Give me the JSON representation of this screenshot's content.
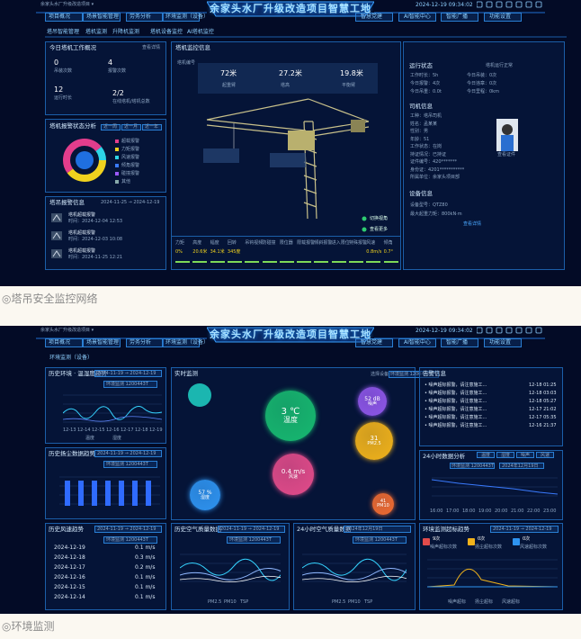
{
  "captions": [
    "◎塔吊安全监控网络",
    "◎环境监测"
  ],
  "figures": [
    {
      "header": {
        "project": "余家头水厂升级改造项目 ▾",
        "title": "余家头水厂升级改造项目智慧工地",
        "datetime": "2024-12-19 09:34:02"
      },
      "nav_left": [
        "项目概况",
        "场景智能管理",
        "劳务分析",
        "环境监测（设备）"
      ],
      "nav_right": [
        "智慧党建",
        "AI智能中心",
        "智能广播",
        "功能设置"
      ],
      "tabs": [
        "塔吊智能管理",
        "塔机监测",
        "升降机监测",
        "塔机设备监控",
        "AI塔机监控"
      ],
      "work_panel": {
        "title": "今日塔机工作概况",
        "more": "查看详情",
        "items": [
          {
            "value": "0",
            "label": "吊装次数"
          },
          {
            "value": "4",
            "label": "报警次数"
          },
          {
            "value": "12",
            "label": "运行时长"
          },
          {
            "value": "2/2",
            "label": "在线塔机/塔机总数"
          }
        ]
      },
      "alarm_panel": {
        "title": "塔机报警状态分析",
        "tabs": [
          "近一周",
          "近一月",
          "近一年"
        ],
        "legend": [
          "超载报警",
          "力矩报警",
          "风速报警",
          "倾角报警",
          "碰撞报警",
          "其他"
        ]
      },
      "record_panel": {
        "title": "塔吊报警信息",
        "range": "2024-11-25 → 2024-12-19",
        "items": [
          {
            "name": "塔机超载报警",
            "time": "时间：2024-12-04 12:53"
          },
          {
            "name": "塔机超载报警",
            "time": "时间：2024-12-03 10:08"
          },
          {
            "name": "塔机超载报警",
            "time": "时间：2024-11-25 12:21"
          }
        ]
      },
      "monitor": {
        "title": "塔机监控信息",
        "device": "塔机编号",
        "top_stats": [
          {
            "value": "72米",
            "label": "起重臂"
          },
          {
            "value": "27.2米",
            "label": "塔高"
          },
          {
            "value": "19.8米",
            "label": "平衡臂"
          }
        ],
        "bottom": [
          {
            "label": "力矩",
            "value": "0%"
          },
          {
            "label": "高度",
            "value": "20.6米"
          },
          {
            "label": "幅度",
            "value": "34.1米"
          },
          {
            "label": "回转",
            "value": "345度"
          },
          {
            "label": "吊钩视频"
          },
          {
            "label": "防碰撞"
          },
          {
            "label": "限位器"
          },
          {
            "label": "限载报警"
          },
          {
            "label": "倾斜报警"
          },
          {
            "label": "进入限位"
          },
          {
            "label": "特殊报警"
          },
          {
            "label": "风速",
            "value": "0.8m/s"
          },
          {
            "label": "倾角",
            "value": "0.7°"
          }
        ],
        "buttons": [
          "切换视角",
          "查看更多"
        ]
      },
      "right": {
        "status_title": "运行状态",
        "status_tag": "塔机运行正常",
        "status": [
          "工作时长：5h",
          "今日吊装：0次",
          "今日报警：4次",
          "今日违章：0次",
          "今日吊重：0.0t",
          "今日里程：0km"
        ],
        "driver_title": "司机信息",
        "driver": [
          "工种：塔吊司机",
          "姓名：孟某某",
          "性别：男",
          "年龄：51",
          "工作状态：在岗",
          "持证情况：已持证",
          "证件编号：420*******",
          "身份证：4201***********",
          "所属单位：余家头项目部"
        ],
        "photo_label": "查看证件",
        "device_title": "设备信息",
        "device": [
          "设备型号：QTZ80",
          "最大起重力矩：800kN·m"
        ],
        "device_more": "查看详情"
      }
    },
    {
      "header": {
        "project": "余家头水厂升级改造项目 ▾",
        "title": "余家头水厂升级改造项目智慧工地",
        "datetime": "2024-12-19 09:34:02"
      },
      "nav_left": [
        "项目概况",
        "场景智能管理",
        "劳务分析",
        "环境监测（设备）"
      ],
      "nav_right": [
        "智慧党建",
        "AI智能中心",
        "智能广播",
        "功能设置"
      ],
      "subtitle": "环境监测（设备）",
      "temp_panel": {
        "title": "历史环境 · 温湿度趋势",
        "range": "2024-11-19 → 2024-12-19",
        "device": "环境监测 1200443T",
        "dates": [
          "12-13",
          "12-14",
          "12-15",
          "12-16",
          "12-17",
          "12-18",
          "12-19"
        ],
        "legend": [
          "温度",
          "湿度"
        ]
      },
      "dust_panel": {
        "title": "历史扬尘数据趋势",
        "range": "2024-11-19 → 2024-12-19",
        "device": "环境监测 1200443T"
      },
      "wind_panel": {
        "title": "历史风速趋势",
        "range": "2024-11-19 → 2024-12-19",
        "device": "环境监测 1200443T",
        "rows": [
          [
            "2024-12-19",
            "0.1 m/s"
          ],
          [
            "2024-12-18",
            "0.3 m/s"
          ],
          [
            "2024-12-17",
            "0.2 m/s"
          ],
          [
            "2024-12-16",
            "0.1 m/s"
          ],
          [
            "2024-12-15",
            "0.1 m/s"
          ],
          [
            "2024-12-14",
            "0.1 m/s"
          ]
        ]
      },
      "realtime": {
        "title": "实时监测",
        "device_label": "选择设备",
        "device": "环境监测 1200443T",
        "bubbles": [
          {
            "value": "3 ℃",
            "label": "温度"
          },
          {
            "value": "52 dB",
            "label": "噪声"
          },
          {
            "value": "31",
            "label": "PM2.5"
          },
          {
            "value": "0.4 m/s",
            "label": "风速"
          },
          {
            "value": "57 %",
            "label": "湿度"
          },
          {
            "value": "41",
            "label": "PM10"
          }
        ]
      },
      "alerts": {
        "title": "告警信息",
        "items": [
          [
            "• 噪声超标报警，请注意施工...",
            "12-18 01:25"
          ],
          [
            "• 噪声超标报警，请注意施工...",
            "12-18 03:03"
          ],
          [
            "• 噪声超标报警，请注意施工...",
            "12-18 05:27"
          ],
          [
            "• 噪声超标报警，请注意施工...",
            "12-17 21:02"
          ],
          [
            "• 噪声超标报警，请注意施工...",
            "12-17 05:35"
          ],
          [
            "• 噪声超标报警，请注意施工...",
            "12-16 21:37"
          ]
        ]
      },
      "analysis": {
        "title": "24小时数据分析",
        "tabs": [
          "温度",
          "湿度",
          "噪声",
          "风速"
        ],
        "device": "环境监测 1200443T",
        "date": "2024年12月19日",
        "hours": [
          "16:00",
          "17:00",
          "18:00",
          "19:00",
          "20:00",
          "21:00",
          "22:00",
          "23:00"
        ]
      },
      "air_panel": {
        "title": "历史空气质量数据",
        "range": "2024-11-19 → 2024-12-19",
        "device": "环境监测 1200443T",
        "legend": [
          "PM2.5",
          "PM10",
          "TSP"
        ]
      },
      "air24_panel": {
        "title": "24小时空气质量数据",
        "date": "2024年12月19日",
        "device": "环境监测 1200443T",
        "legend": [
          "PM2.5",
          "PM10",
          "TSP"
        ]
      },
      "exceed_panel": {
        "title": "环境监测超标趋势",
        "range": "2024-11-19 → 2024-12-19",
        "stats": [
          [
            "9次",
            "噪声超标次数"
          ],
          [
            "0次",
            "扬尘超标次数"
          ],
          [
            "0次",
            "风速超标次数"
          ]
        ],
        "legend": [
          "噪声超标",
          "扬尘超标",
          "风速超标"
        ]
      }
    }
  ]
}
